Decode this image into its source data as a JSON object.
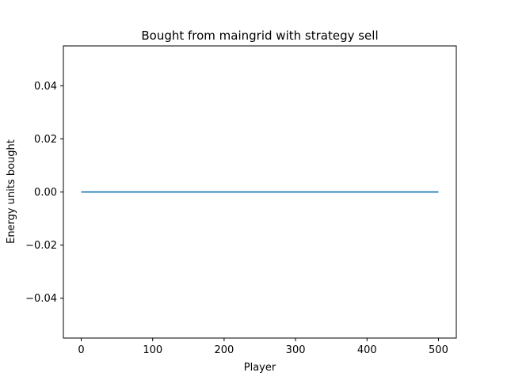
{
  "chart_data": {
    "type": "line",
    "title": "Bought from maingrid with strategy sell",
    "xlabel": "Player",
    "ylabel": "Energy units bought",
    "xlim": [
      -25,
      525
    ],
    "ylim": [
      -0.055,
      0.055
    ],
    "xticks": [
      0,
      100,
      200,
      300,
      400,
      500
    ],
    "xtick_labels": [
      "0",
      "100",
      "200",
      "300",
      "400",
      "500"
    ],
    "yticks": [
      -0.04,
      -0.02,
      0.0,
      0.02,
      0.04
    ],
    "ytick_labels": [
      "−0.04",
      "−0.02",
      "0.00",
      "0.02",
      "0.04"
    ],
    "grid": false,
    "series": [
      {
        "color": "#1f77b4",
        "x": [
          0,
          500
        ],
        "y": [
          0,
          0
        ]
      }
    ]
  }
}
